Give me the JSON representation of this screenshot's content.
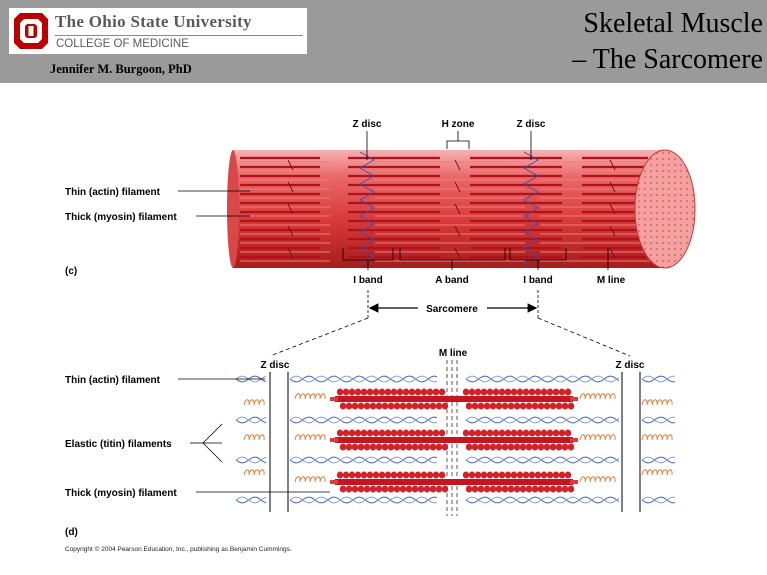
{
  "header": {
    "university": "The Ohio State University",
    "college": "COLLEGE OF MEDICINE",
    "author": "Jennifer M. Burgoon, PhD",
    "title_line1": "Skeletal Muscle",
    "title_line2": "– The Sarcomere",
    "logo_letter": "O",
    "brand_color": "#bb0000"
  },
  "figure_c": {
    "panel_label": "(c)",
    "z_disc_left": "Z disc",
    "h_zone": "H zone",
    "z_disc_right": "Z disc",
    "thin_filament": "Thin (actin) filament",
    "thick_filament": "Thick (myosin) filament",
    "i_band_left": "I band",
    "a_band": "A band",
    "i_band_right": "I band",
    "m_line": "M line",
    "sarcomere": "Sarcomere"
  },
  "figure_d": {
    "panel_label": "(d)",
    "z_disc_left": "Z disc",
    "m_line": "M line",
    "z_disc_right": "Z disc",
    "thin_filament": "Thin (actin) filament",
    "elastic_filaments": "Elastic (titin) filaments",
    "thick_filament": "Thick (myosin) filament"
  },
  "copyright": "Copyright © 2004 Pearson Education, Inc., publishing as Benjamin Cummings."
}
